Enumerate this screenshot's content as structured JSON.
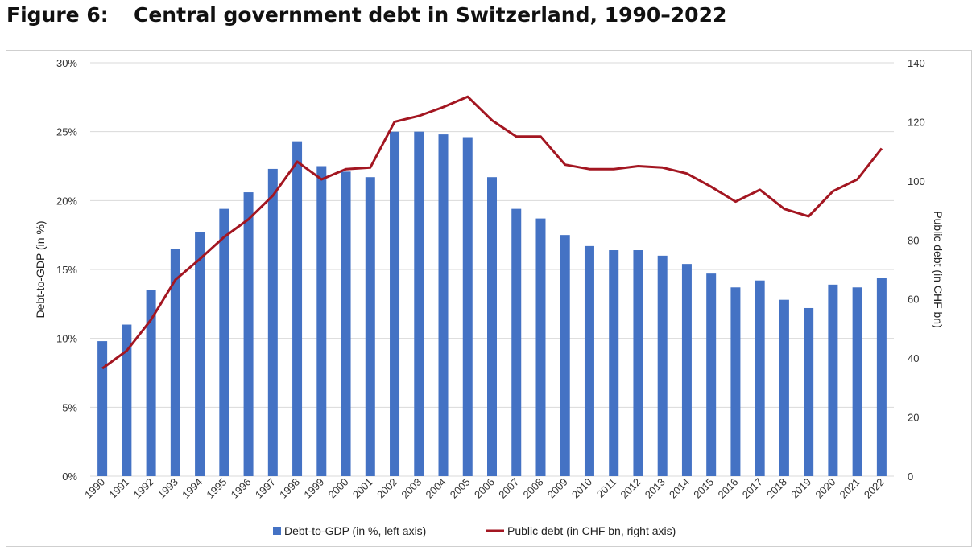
{
  "figure": {
    "label": "Figure 6:",
    "title": "Central government debt in Switzerland, 1990–2022"
  },
  "chart_data": {
    "type": "bar",
    "categories": [
      "1990",
      "1991",
      "1992",
      "1993",
      "1994",
      "1995",
      "1996",
      "1997",
      "1998",
      "1999",
      "2000",
      "2001",
      "2002",
      "2003",
      "2004",
      "2005",
      "2006",
      "2007",
      "2008",
      "2009",
      "2010",
      "2011",
      "2012",
      "2013",
      "2014",
      "2015",
      "2016",
      "2017",
      "2018",
      "2019",
      "2020",
      "2021",
      "2022"
    ],
    "series": [
      {
        "name": "Debt-to-GDP (in %, left axis)",
        "type": "bar",
        "axis": "left",
        "color": "#4472C4",
        "values": [
          9.8,
          11.0,
          13.5,
          16.5,
          17.7,
          19.4,
          20.6,
          22.3,
          24.3,
          22.5,
          22.1,
          21.7,
          25.0,
          25.0,
          24.8,
          24.6,
          21.7,
          19.4,
          18.7,
          17.5,
          16.7,
          16.4,
          16.4,
          16.0,
          15.4,
          14.7,
          13.7,
          14.2,
          12.8,
          12.2,
          13.9,
          13.7,
          14.4
        ]
      },
      {
        "name": "Public debt (in CHF bn, right axis)",
        "type": "line",
        "axis": "right",
        "color": "#A31621",
        "values": [
          36.5,
          42.5,
          53.0,
          66.5,
          73.5,
          81.0,
          87.0,
          95.0,
          106.5,
          100.5,
          104.0,
          104.5,
          120.0,
          122.0,
          125.0,
          128.5,
          120.5,
          115.0,
          115.0,
          105.5,
          104.0,
          104.0,
          105.0,
          104.5,
          102.5,
          98.0,
          93.0,
          97.0,
          90.5,
          88.0,
          96.5,
          100.5,
          111.0
        ]
      }
    ],
    "y_left": {
      "label": "Debt-to-GDP (in %)",
      "range": [
        0,
        30
      ],
      "ticks": [
        0,
        5,
        10,
        15,
        20,
        25,
        30
      ],
      "tick_labels": [
        "0%",
        "5%",
        "10%",
        "15%",
        "20%",
        "25%",
        "30%"
      ]
    },
    "y_right": {
      "label": "Public debt (in CHF bn)",
      "range": [
        0,
        140
      ],
      "ticks": [
        0,
        20,
        40,
        60,
        80,
        100,
        120,
        140
      ],
      "tick_labels": [
        "0",
        "20",
        "40",
        "60",
        "80",
        "100",
        "120",
        "140"
      ]
    },
    "gridlines": true,
    "legend_position": "bottom"
  }
}
